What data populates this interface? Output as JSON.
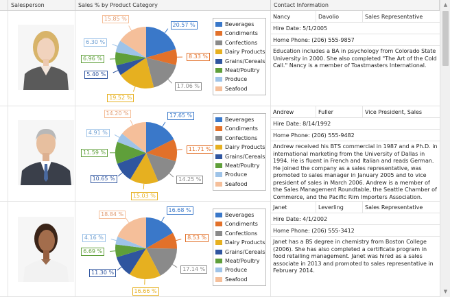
{
  "columns": {
    "salesperson": "Salesperson",
    "sales": "Sales % by Product Category",
    "contact": "Contact Information"
  },
  "legend_labels": [
    "Beverages",
    "Condiments",
    "Confections",
    "Dairy Products",
    "Grains/Cereals",
    "Meat/Poultry",
    "Produce",
    "Seafood"
  ],
  "colors": {
    "Beverages": "#3a78c9",
    "Condiments": "#e2712a",
    "Confections": "#8a8a8a",
    "Dairy Products": "#e6b020",
    "Grains/Cereals": "#2f559f",
    "Meat/Poultry": "#5f9f3a",
    "Produce": "#9ec3e8",
    "Seafood": "#f5bf9a",
    "header_bg": "#f4f4f4",
    "grid_line": "#e3e3e3"
  },
  "employees": [
    {
      "first_name": "Nancy",
      "last_name": "Davolio",
      "title": "Sales Representative",
      "hire_date": "Hire Date: 5/1/2005",
      "home_phone": "Home Phone: (206) 555-9857",
      "bio": "Education includes a BA in psychology from Colorado State University in 2000. She also completed \"The Art of the Cold Call.\" Nancy is a member of Toastmasters International.",
      "photo": "portrait-woman-blonde",
      "chart_data": {
        "type": "pie",
        "categories": [
          "Beverages",
          "Condiments",
          "Confections",
          "Dairy Products",
          "Grains/Cereals",
          "Meat/Poultry",
          "Produce",
          "Seafood"
        ],
        "values": [
          20.57,
          8.33,
          17.06,
          19.52,
          5.4,
          6.96,
          6.3,
          15.85
        ],
        "labels": [
          "20.57 %",
          "8.33 %",
          "17.06 %",
          "19.52 %",
          "5.40 %",
          "6.96 %",
          "6.30 %",
          "15.85 %"
        ],
        "title": "Sales % by Product Category"
      }
    },
    {
      "first_name": "Andrew",
      "last_name": "Fuller",
      "title": "Vice President, Sales",
      "hire_date": "Hire Date: 8/14/1992",
      "home_phone": "Home Phone: (206) 555-9482",
      "bio": "Andrew received his BTS commercial in 1987 and a Ph.D. in international marketing from the University of Dallas in 1994. He is fluent in French and Italian and reads German. He joined the company as a sales representative, was promoted to sales manager in January 2005 and to vice president of sales in March 2006. Andrew is a member of the Sales Management Roundtable, the Seattle Chamber of Commerce, and the Pacific Rim Importers Association.",
      "photo": "portrait-man-gray-hair",
      "chart_data": {
        "type": "pie",
        "categories": [
          "Beverages",
          "Condiments",
          "Confections",
          "Dairy Products",
          "Grains/Cereals",
          "Meat/Poultry",
          "Produce",
          "Seafood"
        ],
        "values": [
          17.65,
          11.71,
          14.25,
          15.03,
          10.65,
          11.59,
          4.91,
          14.2
        ],
        "labels": [
          "17.65 %",
          "11.71 %",
          "14.25 %",
          "15.03 %",
          "10.65 %",
          "11.59 %",
          "4.91 %",
          "14.20 %"
        ],
        "title": "Sales % by Product Category"
      }
    },
    {
      "first_name": "Janet",
      "last_name": "Leverling",
      "title": "Sales Representative",
      "hire_date": "Hire Date: 4/1/2002",
      "home_phone": "Home Phone: (206) 555-3412",
      "bio": "Janet has a BS degree in chemistry from Boston College (2006). She has also completed a certificate program in food retailing management. Janet was hired as a sales associate in 2013 and promoted to sales representative in February 2014.",
      "photo": "portrait-woman-dark-hair",
      "chart_data": {
        "type": "pie",
        "categories": [
          "Beverages",
          "Condiments",
          "Confections",
          "Dairy Products",
          "Grains/Cereals",
          "Meat/Poultry",
          "Produce",
          "Seafood"
        ],
        "values": [
          16.68,
          8.53,
          17.14,
          16.66,
          11.3,
          6.69,
          4.16,
          18.84
        ],
        "labels": [
          "16.68 %",
          "8.53 %",
          "17.14 %",
          "16.66 %",
          "11.30 %",
          "6.69 %",
          "4.16 %",
          "18.84 %"
        ],
        "title": "Sales % by Product Category"
      }
    }
  ]
}
